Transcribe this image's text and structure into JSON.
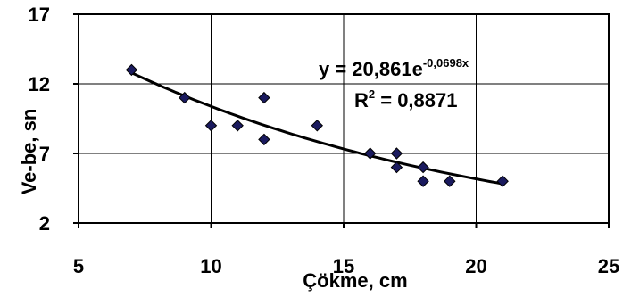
{
  "chart_data": {
    "type": "scatter",
    "title": "",
    "xlabel": "Çökme, cm",
    "ylabel": "Ve-be, sn",
    "xlim": [
      5,
      25
    ],
    "ylim": [
      2,
      17
    ],
    "xticks": [
      "5",
      "10",
      "15",
      "20",
      "25"
    ],
    "yticks": [
      "2",
      "7",
      "12",
      "17"
    ],
    "grid": true,
    "series": [
      {
        "points": [
          {
            "x": 7,
            "y": 13
          },
          {
            "x": 9,
            "y": 11
          },
          {
            "x": 10,
            "y": 9
          },
          {
            "x": 11,
            "y": 9
          },
          {
            "x": 12,
            "y": 8
          },
          {
            "x": 12,
            "y": 11
          },
          {
            "x": 14,
            "y": 9
          },
          {
            "x": 16,
            "y": 7
          },
          {
            "x": 17,
            "y": 7
          },
          {
            "x": 17,
            "y": 6
          },
          {
            "x": 18,
            "y": 6
          },
          {
            "x": 18,
            "y": 5
          },
          {
            "x": 19,
            "y": 5
          },
          {
            "x": 21,
            "y": 5
          }
        ],
        "marker_color": "#1a1a5e"
      }
    ],
    "trendline": {
      "type": "exponential",
      "a": 20.861,
      "b": -0.0698,
      "x_range": [
        7,
        21
      ]
    },
    "annotations": {
      "equation_prefix": "y = 20,861e",
      "equation_exponent": "-0,0698x",
      "r2_prefix": "R",
      "r2_sup": "2",
      "r2_suffix": " = 0,8871"
    }
  }
}
